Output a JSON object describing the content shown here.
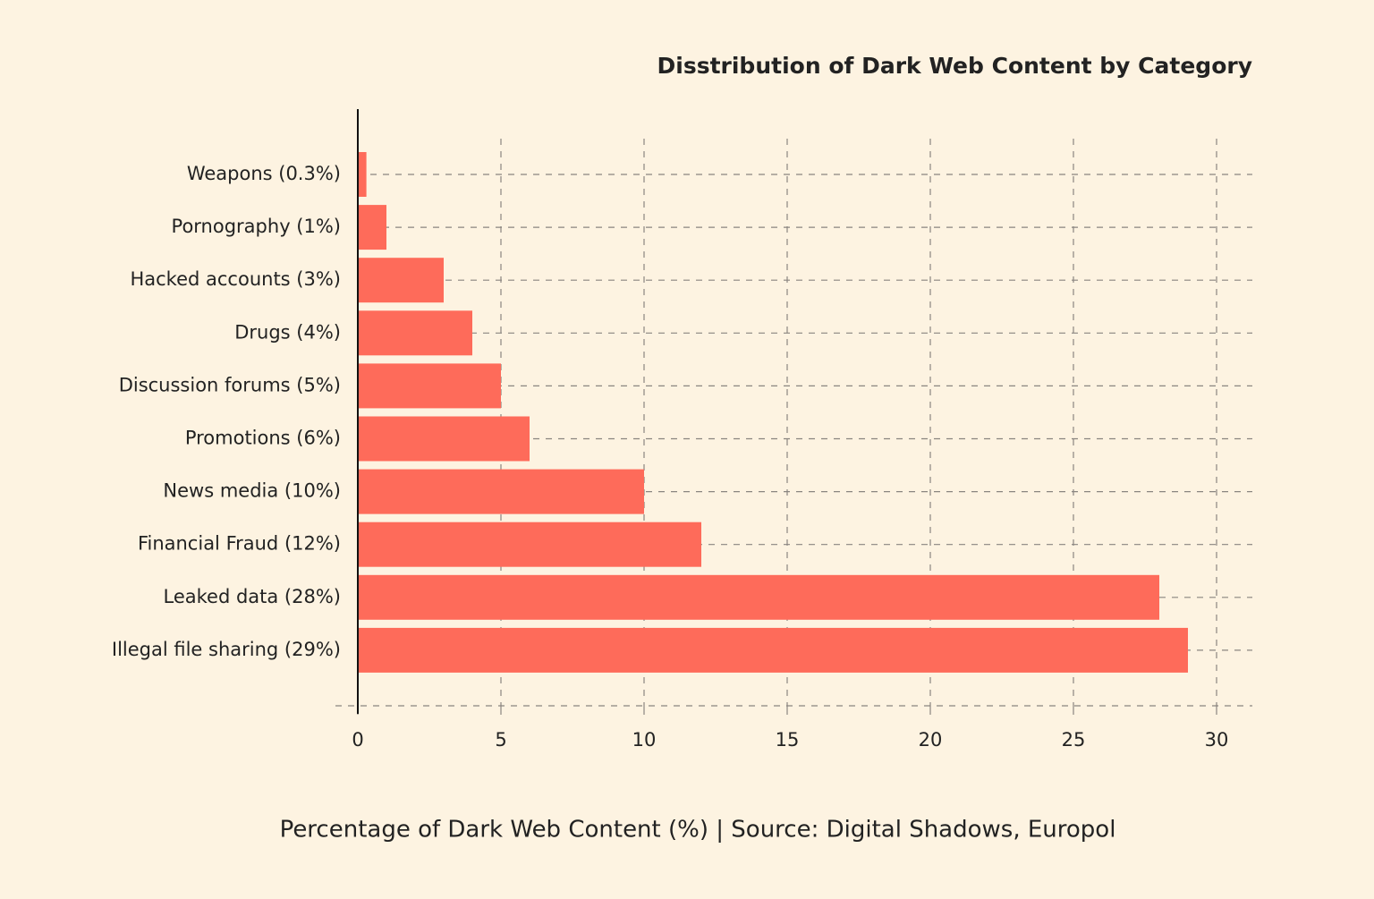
{
  "chart_data": {
    "type": "hbar",
    "title": "Disstribution of Dark Web Content by Category",
    "xlabel": "Percentage of Dark Web Content (%) | Source: Digital Shadows, Europol",
    "categories": [
      "Weapons (0.3%)",
      "Pornography (1%)",
      "Hacked accounts (3%)",
      "Drugs (4%)",
      "Discussion forums (5%)",
      "Promotions (6%)",
      "News media (10%)",
      "Financial Fraud (12%)",
      "Leaked data (28%)",
      "Illegal file sharing (29%)"
    ],
    "values": [
      0.3,
      1,
      3,
      4,
      5,
      6,
      10,
      12,
      28,
      29
    ],
    "color": "#fe6b5a",
    "xlim": [
      0,
      30
    ],
    "xticks": [
      0,
      5,
      10,
      15,
      20,
      25,
      30
    ],
    "grid": true
  }
}
